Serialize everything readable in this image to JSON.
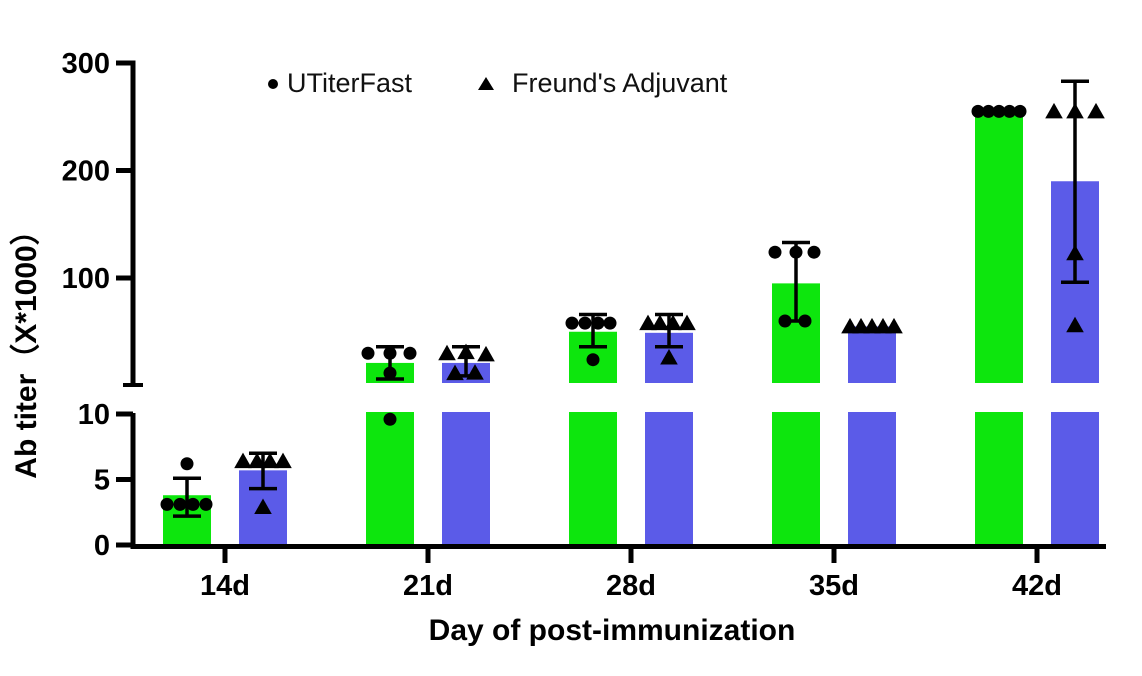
{
  "chart_data": {
    "type": "bar",
    "subtype": "grouped-bar-with-scatter-and-error-bars",
    "title": "",
    "xlabel": "Day of post-immunization",
    "ylabel": "Ab titer（X*1000）",
    "categories": [
      "14d",
      "21d",
      "28d",
      "35d",
      "42d"
    ],
    "y_axis": {
      "broken": true,
      "lower_segment": {
        "range": [
          0,
          10
        ],
        "ticks": [
          0,
          5,
          10
        ]
      },
      "upper_segment": {
        "range_top": 300,
        "ticks": [
          100,
          200,
          300
        ]
      },
      "grid": false
    },
    "legend_position": "top",
    "marker_color": "#000000",
    "series": [
      {
        "name": "UTiterFast",
        "marker": "circle",
        "color": "#0de60d",
        "bars": [
          {
            "category": "14d",
            "mean": 3.8,
            "sd_hi": 5.1,
            "sd_lo": 2.2,
            "points": [
              3.1,
              3.1,
              3.1,
              3.1,
              6.2
            ],
            "jitter": [
              -20,
              -7,
              6,
              19,
              0
            ]
          },
          {
            "category": "21d",
            "mean": 21,
            "sd_hi": 36,
            "sd_lo": 6,
            "points": [
              30,
              30,
              30,
              11.5,
              9.6
            ],
            "jitter": [
              -22,
              0,
              20,
              0,
              0
            ]
          },
          {
            "category": "28d",
            "mean": 50,
            "sd_hi": 66,
            "sd_lo": 36,
            "points": [
              58,
              58,
              58,
              58,
              24
            ],
            "jitter": [
              -21,
              -8,
              5,
              17,
              0
            ]
          },
          {
            "category": "35d",
            "mean": 95,
            "sd_hi": 133,
            "sd_lo": 60,
            "points": [
              124,
              124,
              124,
              60,
              60
            ],
            "jitter": [
              -21,
              0,
              18,
              -11,
              9
            ]
          },
          {
            "category": "42d",
            "mean": 255,
            "sd_hi": null,
            "sd_lo": null,
            "points": [
              255,
              255,
              255,
              255,
              255
            ],
            "jitter": [
              -21,
              -10.5,
              0,
              10.5,
              21
            ]
          }
        ]
      },
      {
        "name": "Freund's Adjuvant",
        "marker": "triangle",
        "color": "#5b5be8",
        "bars": [
          {
            "category": "14d",
            "mean": 5.7,
            "sd_hi": 7.0,
            "sd_lo": 4.3,
            "points": [
              6.4,
              6.4,
              6.4,
              6.4,
              2.9
            ],
            "jitter": [
              -20,
              -6,
              7,
              20,
              0
            ]
          },
          {
            "category": "21d",
            "mean": 21,
            "sd_hi": 36,
            "sd_lo": 9,
            "points": [
              30,
              31,
              29,
              11.5,
              12
            ],
            "jitter": [
              -19,
              0,
              20,
              -11,
              9
            ]
          },
          {
            "category": "28d",
            "mean": 49,
            "sd_hi": 66,
            "sd_lo": 36,
            "points": [
              58,
              58,
              58,
              58,
              26
            ],
            "jitter": [
              -21,
              -9,
              4,
              18,
              0
            ]
          },
          {
            "category": "35d",
            "mean": 55,
            "sd_hi": null,
            "sd_lo": null,
            "points": [
              55,
              55,
              55,
              55,
              55
            ],
            "jitter": [
              -22,
              -11,
              0,
              11,
              22
            ]
          },
          {
            "category": "42d",
            "mean": 190,
            "sd_hi": 283,
            "sd_lo": 96,
            "points": [
              255,
              255,
              255,
              123,
              56
            ],
            "jitter": [
              -21,
              0,
              21,
              0,
              0
            ]
          }
        ]
      }
    ]
  }
}
